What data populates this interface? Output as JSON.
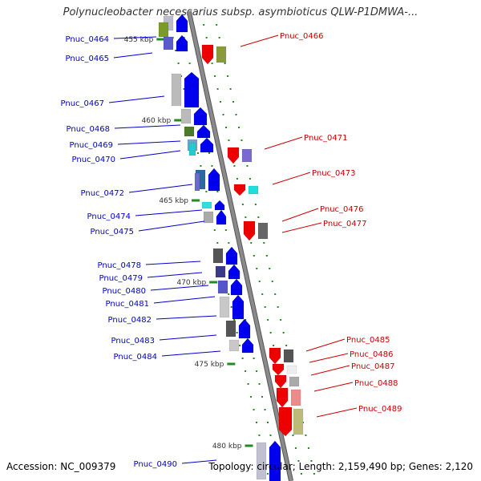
{
  "title": "Polynucleobacter necessarius subsp. asymbioticus QLW-P1DMWA-...",
  "accession": "Accession: NC_009379",
  "topology": "Topology: circular; Length: 2,159,490 bp; Genes: 2,120",
  "colors": {
    "backbone": "#8a8a8a",
    "label_left": "#0000cc",
    "label_right": "#cc0000",
    "tick": "#228b22",
    "forward_gene": "#0000ee",
    "reverse_gene": "#ee0000"
  },
  "kbp_marks": [
    {
      "label": "455 kbp"
    },
    {
      "label": "460 kbp"
    },
    {
      "label": "465 kbp"
    },
    {
      "label": "470 kbp"
    },
    {
      "label": "475 kbp"
    },
    {
      "label": "480 kbp"
    }
  ],
  "gene_labels_left": [
    "Pnuc_0464",
    "Pnuc_0465",
    "Pnuc_0467",
    "Pnuc_0468",
    "Pnuc_0469",
    "Pnuc_0470",
    "Pnuc_0472",
    "Pnuc_0474",
    "Pnuc_0475",
    "Pnuc_0478",
    "Pnuc_0479",
    "Pnuc_0480",
    "Pnuc_0481",
    "Pnuc_0482",
    "Pnuc_0483",
    "Pnuc_0484",
    "Pnuc_0490"
  ],
  "gene_labels_right": [
    "Pnuc_0466",
    "Pnuc_0471",
    "Pnuc_0473",
    "Pnuc_0476",
    "Pnuc_0477",
    "Pnuc_0485",
    "Pnuc_0486",
    "Pnuc_0487",
    "Pnuc_0488",
    "Pnuc_0489"
  ]
}
